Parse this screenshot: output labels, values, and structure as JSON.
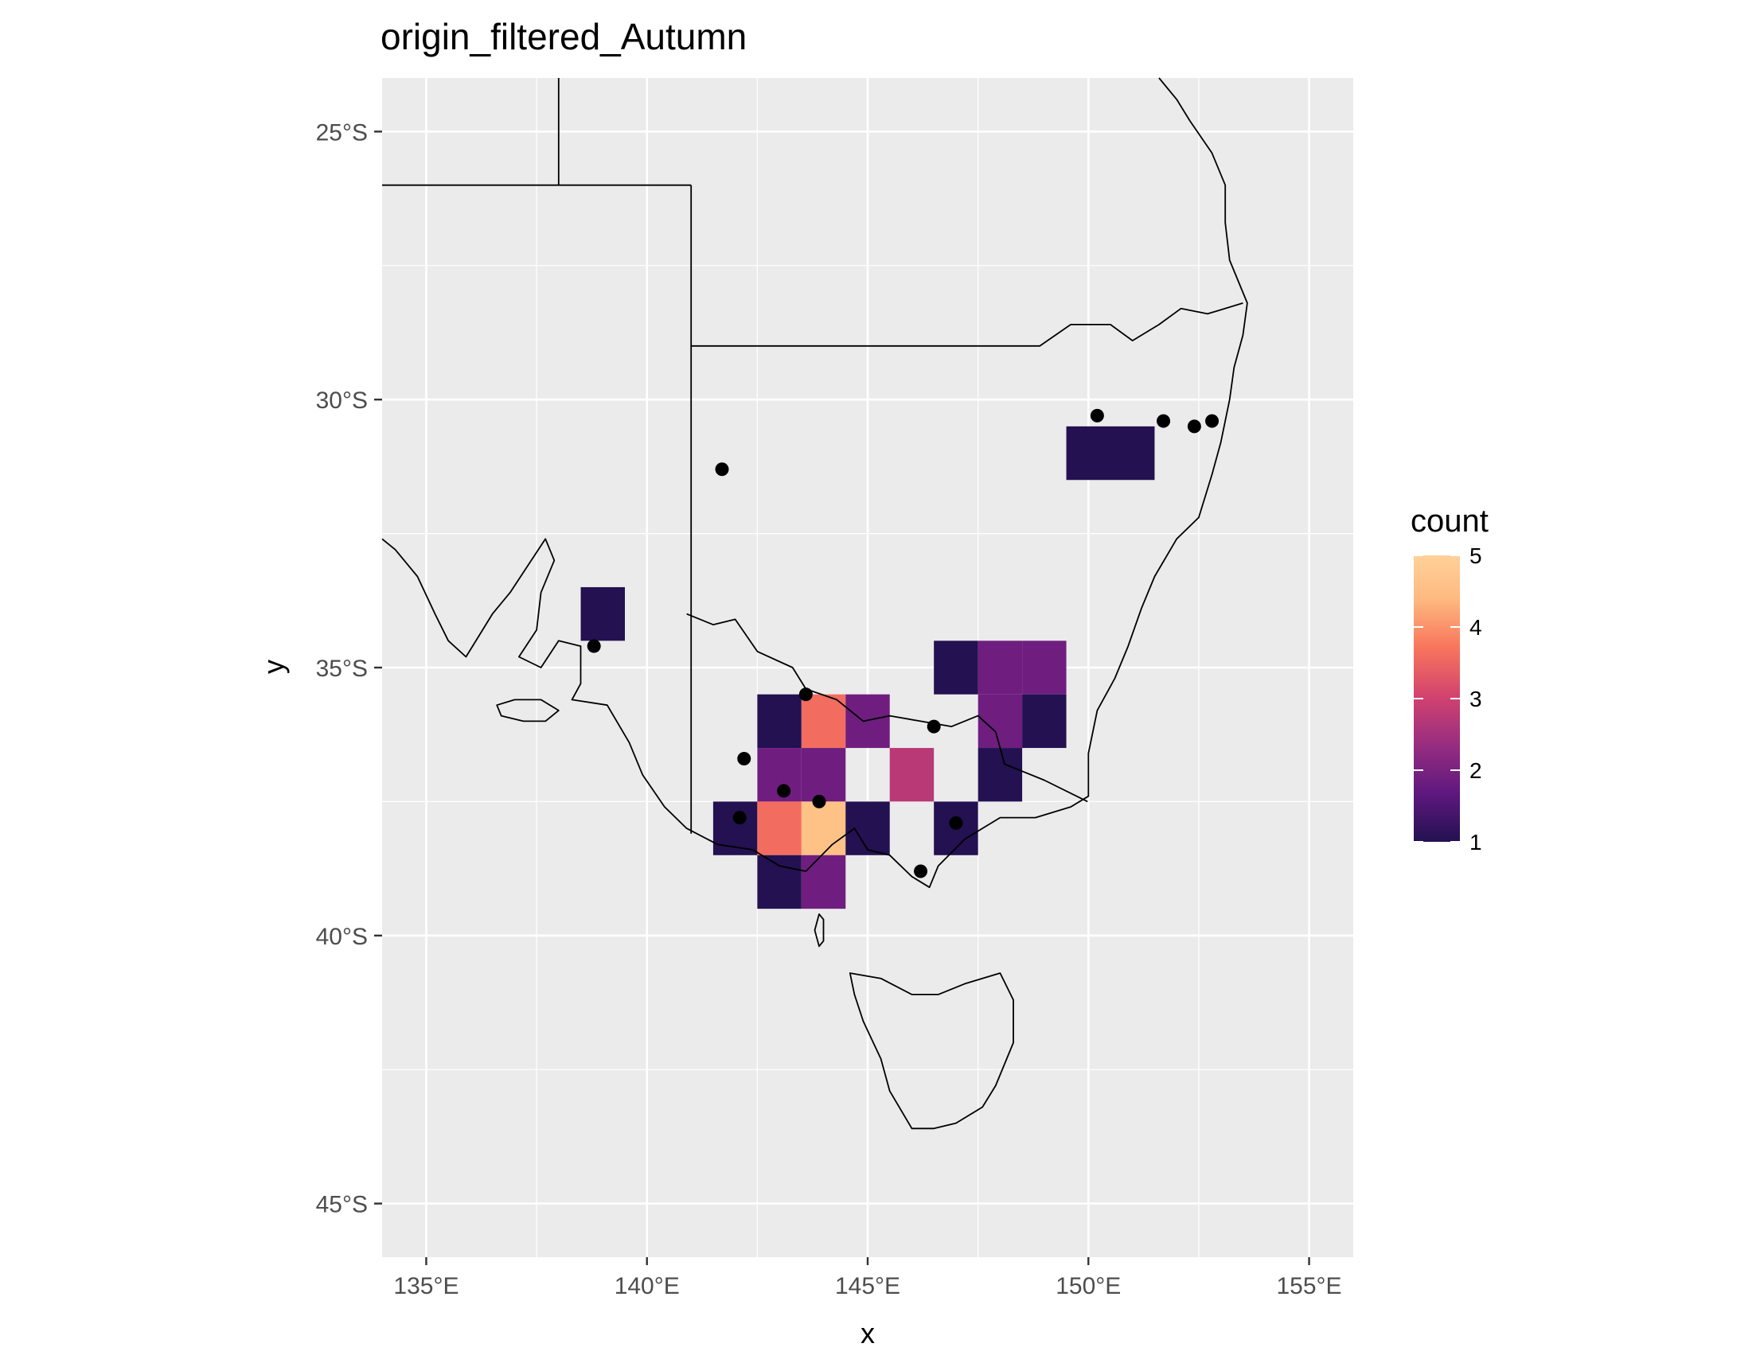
{
  "chart_data": {
    "type": "heatmap",
    "title": "origin_filtered_Autumn",
    "xlabel": "x",
    "ylabel": "y",
    "xlim": [
      134,
      156
    ],
    "ylim": [
      -46,
      -24
    ],
    "x_ticks": [
      135,
      140,
      145,
      150,
      155
    ],
    "x_tick_labels": [
      "135°E",
      "140°E",
      "145°E",
      "150°E",
      "155°E"
    ],
    "y_ticks": [
      -25,
      -30,
      -35,
      -40,
      -45
    ],
    "y_tick_labels": [
      "25°S",
      "30°S",
      "35°S",
      "40°S",
      "45°S"
    ],
    "grid": true,
    "legend": {
      "title": "count",
      "position": "right",
      "min": 1,
      "max": 5,
      "ticks": [
        1,
        2,
        3,
        4,
        5
      ],
      "tick_labels": [
        "1",
        "2",
        "3",
        "4",
        "5"
      ],
      "palette": "magma"
    },
    "colors": {
      "panel_bg": "#ebebeb",
      "grid": "#ffffff",
      "outline": "#000000",
      "points": "#000000",
      "scale": [
        "#231151",
        "#5F187F",
        "#982D80",
        "#D3436E",
        "#F8765C",
        "#FEBA80",
        "#FCFDBF"
      ]
    },
    "cell_size_deg": 1,
    "tiles": [
      {
        "x": 139,
        "y": -34,
        "count": 1
      },
      {
        "x": 150,
        "y": -31,
        "count": 1
      },
      {
        "x": 151,
        "y": -31,
        "count": 1
      },
      {
        "x": 147,
        "y": -35,
        "count": 1
      },
      {
        "x": 148,
        "y": -35,
        "count": 2
      },
      {
        "x": 149,
        "y": -35,
        "count": 2
      },
      {
        "x": 143,
        "y": -36,
        "count": 1
      },
      {
        "x": 144,
        "y": -36,
        "count": 4
      },
      {
        "x": 145,
        "y": -36,
        "count": 2
      },
      {
        "x": 148,
        "y": -36,
        "count": 2
      },
      {
        "x": 149,
        "y": -36,
        "count": 1
      },
      {
        "x": 143,
        "y": -37,
        "count": 2
      },
      {
        "x": 144,
        "y": -37,
        "count": 2
      },
      {
        "x": 146,
        "y": -37,
        "count": 3
      },
      {
        "x": 148,
        "y": -37,
        "count": 1
      },
      {
        "x": 142,
        "y": -38,
        "count": 1
      },
      {
        "x": 143,
        "y": -38,
        "count": 4
      },
      {
        "x": 144,
        "y": -38,
        "count": 5
      },
      {
        "x": 145,
        "y": -38,
        "count": 1
      },
      {
        "x": 147,
        "y": -38,
        "count": 1
      },
      {
        "x": 143,
        "y": -39,
        "count": 1
      },
      {
        "x": 144,
        "y": -39,
        "count": 2
      }
    ],
    "points": [
      {
        "x": 138.8,
        "y": -34.6
      },
      {
        "x": 141.7,
        "y": -31.3
      },
      {
        "x": 143.6,
        "y": -35.5
      },
      {
        "x": 142.2,
        "y": -36.7
      },
      {
        "x": 143.1,
        "y": -37.3
      },
      {
        "x": 143.9,
        "y": -37.5
      },
      {
        "x": 142.1,
        "y": -37.8
      },
      {
        "x": 146.5,
        "y": -36.1
      },
      {
        "x": 147.0,
        "y": -37.9
      },
      {
        "x": 146.2,
        "y": -38.8
      },
      {
        "x": 150.2,
        "y": -30.3
      },
      {
        "x": 151.7,
        "y": -30.4
      },
      {
        "x": 152.4,
        "y": -30.5
      },
      {
        "x": 152.8,
        "y": -30.4
      }
    ],
    "coastline": [
      [
        134.0,
        -32.6
      ],
      [
        134.3,
        -32.8
      ],
      [
        134.8,
        -33.3
      ],
      [
        135.2,
        -34.0
      ],
      [
        135.5,
        -34.5
      ],
      [
        135.9,
        -34.8
      ],
      [
        136.2,
        -34.4
      ],
      [
        136.5,
        -34.0
      ],
      [
        136.9,
        -33.6
      ],
      [
        137.3,
        -33.1
      ],
      [
        137.7,
        -32.6
      ],
      [
        137.9,
        -33.0
      ],
      [
        137.6,
        -33.6
      ],
      [
        137.5,
        -34.3
      ],
      [
        137.1,
        -34.8
      ],
      [
        137.6,
        -35.0
      ],
      [
        138.0,
        -34.5
      ],
      [
        138.5,
        -34.6
      ],
      [
        138.5,
        -35.3
      ],
      [
        138.3,
        -35.6
      ],
      [
        139.1,
        -35.7
      ],
      [
        139.6,
        -36.4
      ],
      [
        139.9,
        -37.0
      ],
      [
        140.4,
        -37.6
      ],
      [
        140.9,
        -38.0
      ],
      [
        141.6,
        -38.3
      ],
      [
        142.4,
        -38.4
      ],
      [
        143.0,
        -38.7
      ],
      [
        143.6,
        -38.8
      ],
      [
        144.2,
        -38.3
      ],
      [
        144.7,
        -38.0
      ],
      [
        145.0,
        -38.4
      ],
      [
        145.5,
        -38.5
      ],
      [
        146.0,
        -38.9
      ],
      [
        146.4,
        -39.1
      ],
      [
        146.6,
        -38.7
      ],
      [
        147.2,
        -38.2
      ],
      [
        148.0,
        -37.8
      ],
      [
        148.8,
        -37.8
      ],
      [
        149.6,
        -37.6
      ],
      [
        150.0,
        -37.4
      ],
      [
        150.0,
        -36.6
      ],
      [
        150.2,
        -35.8
      ],
      [
        150.6,
        -35.2
      ],
      [
        150.9,
        -34.6
      ],
      [
        151.2,
        -33.9
      ],
      [
        151.5,
        -33.3
      ],
      [
        152.0,
        -32.6
      ],
      [
        152.5,
        -32.2
      ],
      [
        152.8,
        -31.4
      ],
      [
        153.0,
        -30.8
      ],
      [
        153.2,
        -30.0
      ],
      [
        153.3,
        -29.4
      ],
      [
        153.5,
        -28.8
      ],
      [
        153.6,
        -28.2
      ],
      [
        153.2,
        -27.4
      ],
      [
        153.1,
        -26.7
      ],
      [
        153.1,
        -26.0
      ],
      [
        152.8,
        -25.4
      ],
      [
        152.3,
        -24.8
      ],
      [
        152.0,
        -24.4
      ],
      [
        151.6,
        -24.0
      ]
    ],
    "tasmania": [
      [
        144.6,
        -40.7
      ],
      [
        145.3,
        -40.8
      ],
      [
        146.0,
        -41.1
      ],
      [
        146.6,
        -41.1
      ],
      [
        147.2,
        -40.9
      ],
      [
        148.0,
        -40.7
      ],
      [
        148.3,
        -41.2
      ],
      [
        148.3,
        -42.0
      ],
      [
        147.9,
        -42.8
      ],
      [
        147.6,
        -43.2
      ],
      [
        147.0,
        -43.5
      ],
      [
        146.5,
        -43.6
      ],
      [
        146.0,
        -43.6
      ],
      [
        145.5,
        -42.9
      ],
      [
        145.3,
        -42.3
      ],
      [
        144.9,
        -41.6
      ],
      [
        144.7,
        -41.1
      ],
      [
        144.6,
        -40.7
      ]
    ],
    "kangaroo_island": [
      [
        136.6,
        -35.7
      ],
      [
        137.0,
        -35.6
      ],
      [
        137.6,
        -35.6
      ],
      [
        138.0,
        -35.8
      ],
      [
        137.7,
        -36.0
      ],
      [
        137.2,
        -36.0
      ],
      [
        136.7,
        -35.9
      ],
      [
        136.6,
        -35.7
      ]
    ],
    "king_island": [
      [
        143.9,
        -39.6
      ],
      [
        144.0,
        -39.7
      ],
      [
        144.0,
        -40.1
      ],
      [
        143.9,
        -40.2
      ],
      [
        143.8,
        -39.9
      ],
      [
        143.9,
        -39.6
      ]
    ],
    "borders": [
      [
        [
          138.0,
          -24.0
        ],
        [
          138.0,
          -26.0
        ],
        [
          134.0,
          -26.0
        ]
      ],
      [
        [
          141.0,
          -26.0
        ],
        [
          141.0,
          -38.1
        ]
      ],
      [
        [
          138.0,
          -26.0
        ],
        [
          141.0,
          -26.0
        ]
      ],
      [
        [
          141.0,
          -29.0
        ],
        [
          148.9,
          -29.0
        ],
        [
          149.6,
          -28.6
        ],
        [
          150.5,
          -28.6
        ],
        [
          151.0,
          -28.9
        ],
        [
          151.6,
          -28.6
        ],
        [
          152.1,
          -28.3
        ],
        [
          152.7,
          -28.4
        ],
        [
          153.5,
          -28.2
        ]
      ],
      [
        [
          140.9,
          -34.0
        ],
        [
          141.5,
          -34.2
        ],
        [
          142.0,
          -34.1
        ],
        [
          142.5,
          -34.7
        ],
        [
          143.3,
          -35.0
        ],
        [
          143.6,
          -35.4
        ],
        [
          144.3,
          -35.6
        ],
        [
          144.9,
          -36.0
        ],
        [
          145.5,
          -35.9
        ],
        [
          146.2,
          -36.0
        ],
        [
          146.9,
          -36.1
        ],
        [
          147.5,
          -35.9
        ],
        [
          147.9,
          -36.2
        ],
        [
          148.1,
          -36.8
        ],
        [
          149.0,
          -37.1
        ],
        [
          149.98,
          -37.5
        ]
      ]
    ]
  }
}
